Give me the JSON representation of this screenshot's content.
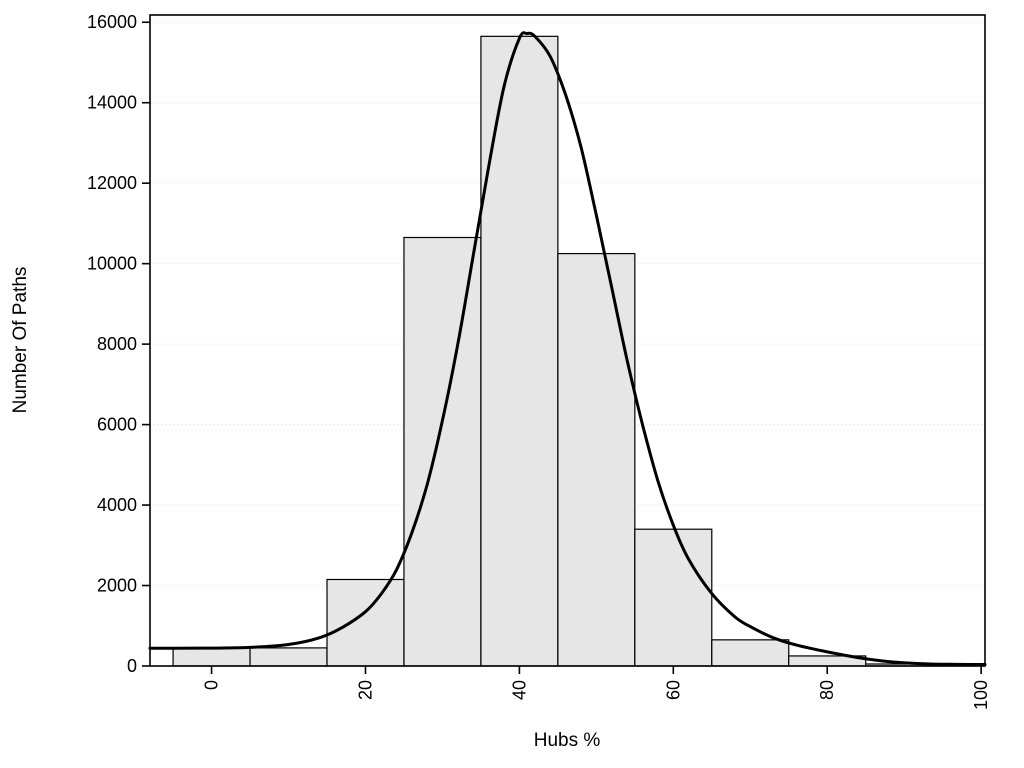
{
  "chart_data": {
    "type": "bar",
    "subtype": "histogram_with_density_curve",
    "title": "",
    "xlabel": "Hubs %",
    "ylabel": "Number Of Paths",
    "xlim": [
      -8,
      100.5
    ],
    "ylim": [
      0,
      16180
    ],
    "x_ticks": [
      0,
      20,
      40,
      60,
      80,
      100
    ],
    "y_ticks": [
      0,
      2000,
      4000,
      6000,
      8000,
      10000,
      12000,
      14000,
      16000
    ],
    "x_tick_label_rotation": -90,
    "grid": "faint-dotted-horizontal",
    "legend_position": "none",
    "bins": [
      {
        "x0": -5,
        "x1": 5,
        "count": 450
      },
      {
        "x0": 5,
        "x1": 15,
        "count": 450
      },
      {
        "x0": 15,
        "x1": 25,
        "count": 2150
      },
      {
        "x0": 25,
        "x1": 35,
        "count": 10650
      },
      {
        "x0": 35,
        "x1": 45,
        "count": 15650
      },
      {
        "x0": 45,
        "x1": 55,
        "count": 10250
      },
      {
        "x0": 55,
        "x1": 65,
        "count": 3400
      },
      {
        "x0": 65,
        "x1": 75,
        "count": 650
      },
      {
        "x0": 75,
        "x1": 85,
        "count": 250
      },
      {
        "x0": 85,
        "x1": 95,
        "count": 50
      }
    ],
    "density_curve": {
      "x": [
        -8,
        -5,
        0,
        5,
        10,
        14,
        17,
        20,
        22,
        24,
        26,
        28,
        30,
        32,
        34,
        36,
        38,
        40,
        41,
        42,
        44,
        46,
        48,
        50,
        52,
        54,
        56,
        58,
        60,
        62,
        65,
        68,
        70,
        73,
        76,
        80,
        84,
        88,
        92,
        96,
        100.5
      ],
      "y": [
        440,
        442,
        446,
        462,
        535,
        700,
        960,
        1350,
        1780,
        2380,
        3300,
        4500,
        6100,
        8000,
        10200,
        12400,
        14400,
        15600,
        15720,
        15650,
        15150,
        14200,
        12900,
        11200,
        9400,
        7600,
        6000,
        4600,
        3500,
        2650,
        1800,
        1220,
        980,
        700,
        520,
        350,
        210,
        110,
        60,
        42,
        38
      ]
    },
    "colors": {
      "bar_fill": "#e6e6e6",
      "bar_stroke": "#000000",
      "curve": "#000000",
      "grid": "#dcdcdc",
      "axis": "#000000",
      "background": "#ffffff"
    }
  }
}
